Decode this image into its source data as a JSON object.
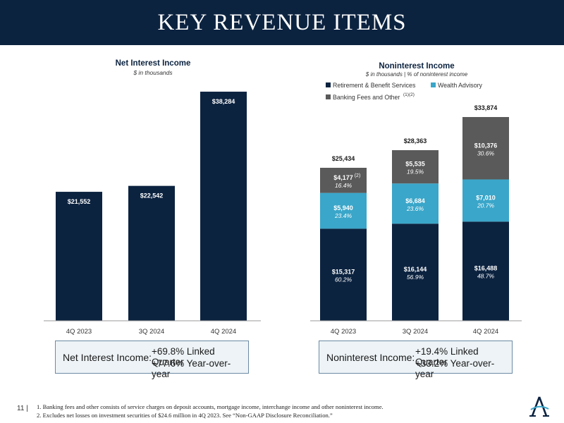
{
  "header": {
    "title": "KEY REVENUE ITEMS"
  },
  "colors": {
    "navy": "#0c2340",
    "teal": "#3aa6c9",
    "gray": "#5a5a5a",
    "box_bg": "#edf3f6",
    "box_border": "#6b8aa5"
  },
  "chart_data": [
    {
      "type": "bar",
      "title": "Net Interest Income",
      "subtitle": "$ in thousands",
      "categories": [
        "4Q 2023",
        "3Q 2024",
        "4Q 2024"
      ],
      "values": [
        21552,
        22542,
        38284
      ],
      "value_labels": [
        "$21,552",
        "$22,542",
        "$38,284"
      ],
      "ylim": [
        0,
        43000
      ],
      "grid": false
    },
    {
      "type": "bar",
      "stacked": true,
      "title": "Noninterest Income",
      "subtitle": "$ in thousands | % of noninterest income",
      "categories": [
        "4Q 2023",
        "3Q 2024",
        "4Q 2024"
      ],
      "legend": {
        "position": "top",
        "items": [
          {
            "label": "Retirement & Benefit Services",
            "sup": "",
            "color": "#0c2340"
          },
          {
            "label": "Wealth Advisory",
            "sup": "",
            "color": "#3aa6c9"
          },
          {
            "label": "Banking Fees and Other",
            "sup": "(1)(2)",
            "color": "#5a5a5a"
          }
        ]
      },
      "series": [
        {
          "name": "Retirement & Benefit Services",
          "values": [
            15317,
            16144,
            16488
          ],
          "labels": [
            "$15,317",
            "$16,144",
            "$16,488"
          ],
          "pcts": [
            "60.2%",
            "56.9%",
            "48.7%"
          ]
        },
        {
          "name": "Wealth Advisory",
          "values": [
            5940,
            6684,
            7010
          ],
          "labels": [
            "$5,940",
            "$6,684",
            "$7,010"
          ],
          "pcts": [
            "23.4%",
            "23.6%",
            "20.7%"
          ]
        },
        {
          "name": "Banking Fees and Other",
          "values": [
            4177,
            5535,
            10376
          ],
          "labels": [
            "$4,177",
            "$5,535",
            "$10,376"
          ],
          "pcts": [
            "16.4%",
            "19.5%",
            "30.6%"
          ],
          "notes": [
            "(2)",
            "",
            ""
          ]
        }
      ],
      "totals": [
        25434,
        28363,
        33874
      ],
      "total_labels": [
        "$25,434",
        "$28,363",
        "$33,874"
      ],
      "ylim": [
        0,
        38000
      ],
      "grid": false
    }
  ],
  "summary": {
    "nii": {
      "label": "Net Interest Income:",
      "lines": [
        "+69.8% Linked Quarter",
        "+77.6% Year-over-year"
      ]
    },
    "noni": {
      "label": "Noninterest Income:",
      "lines": [
        "+19.4% Linked Quarter",
        "+33.2% Year-over-year"
      ]
    }
  },
  "footer": {
    "page": "11 |",
    "notes": [
      "1. Banking fees and other consists of service charges on deposit accounts, mortgage income, interchange income and other noninterest income.",
      "2. Excludes net losses on investment securities of $24.6 million in 4Q 2023. See “Non-GAAP Disclosure Reconciliation.”"
    ]
  }
}
